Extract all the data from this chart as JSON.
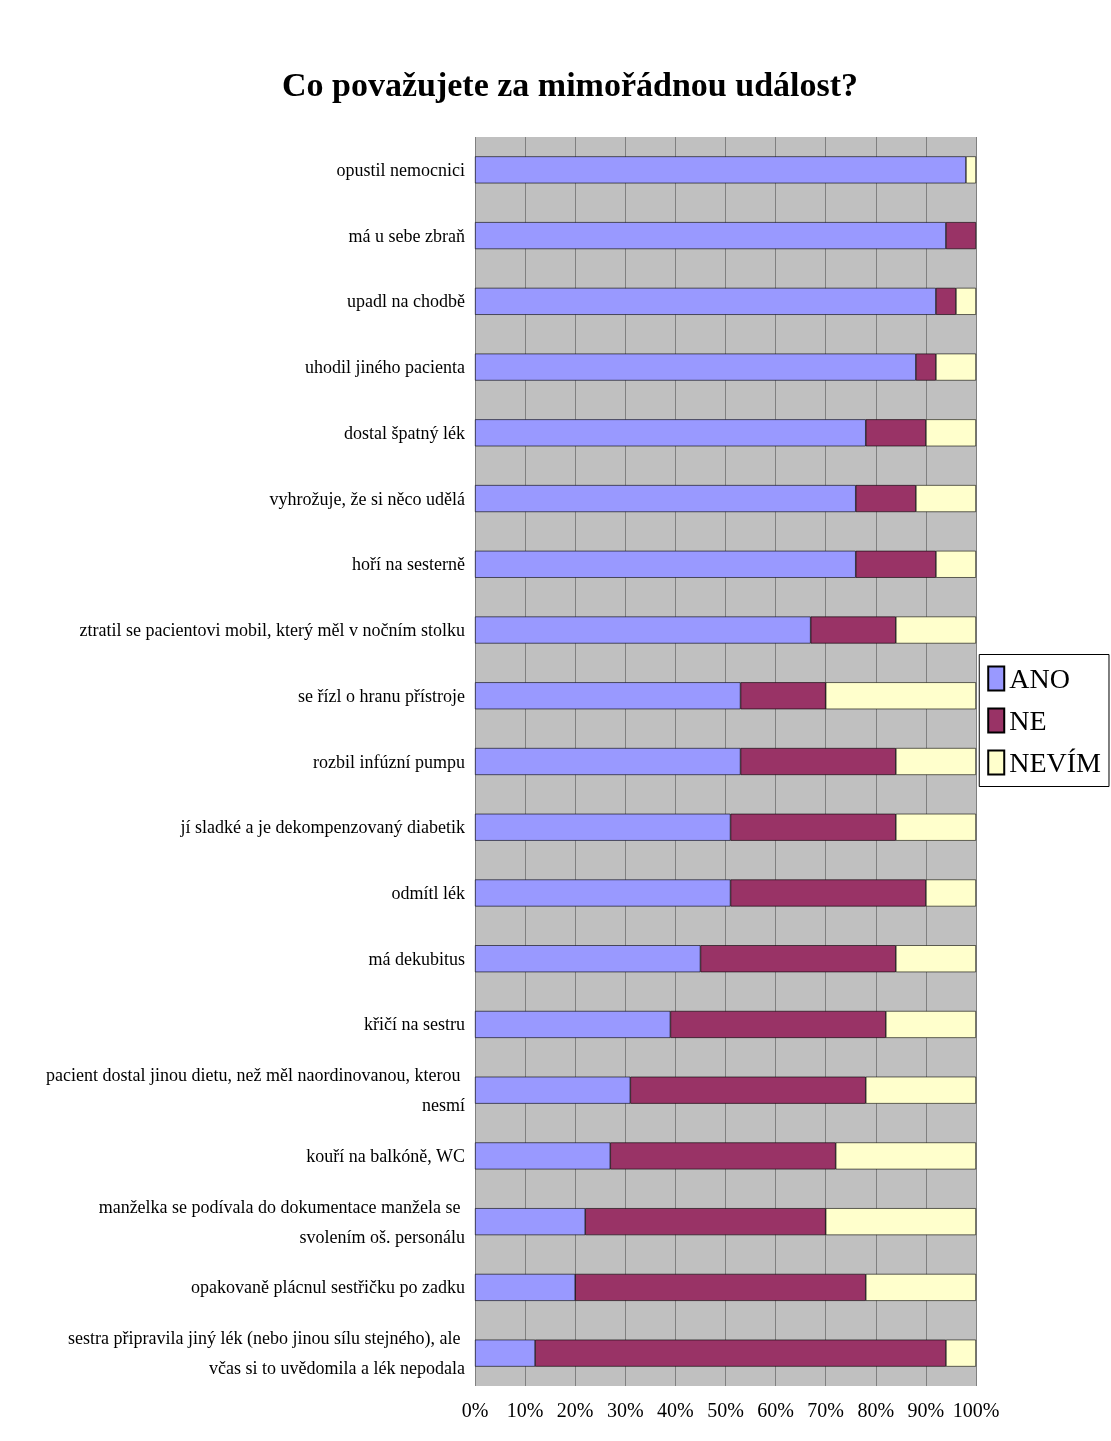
{
  "chart_data": {
    "type": "bar",
    "orientation": "horizontal",
    "stacked": true,
    "title": "Co považujete za mimořádnou událost?",
    "categories": [
      "opustil nemocnici",
      "má u sebe zbraň",
      "upadl na chodbě",
      "uhodil jiného pacienta",
      "dostal špatný lék",
      "vyhrožuje, že si něco udělá",
      "hoří na sesterně",
      "ztratil se pacientovi mobil, který měl v nočním stolku",
      "se řízl o hranu přístroje",
      "rozbil infúzní pumpu",
      "jí sladké a je dekompenzovaný diabetik",
      "odmítl lék",
      "má dekubitus",
      "křičí na sestru",
      "pacient dostal jinou dietu, než měl naordinovanou, kterou nesmí",
      "kouří na balkóně, WC",
      "manželka se podívala do dokumentace manžela se svolením oš. personálu",
      "opakovaně plácnul sestřičku po zadku",
      "sestra připravila jiný lék (nebo jinou sílu stejného), ale včas si to uvědomila a lék nepodala"
    ],
    "series": [
      {
        "name": "ANO",
        "color": "#9999ff",
        "values": [
          98,
          94,
          92,
          88,
          78,
          76,
          76,
          67,
          53,
          53,
          51,
          51,
          45,
          39,
          31,
          27,
          22,
          20,
          12
        ]
      },
      {
        "name": "NE",
        "color": "#993366",
        "values": [
          0,
          6,
          4,
          4,
          12,
          12,
          16,
          17,
          17,
          31,
          33,
          39,
          39,
          43,
          47,
          45,
          48,
          58,
          82
        ]
      },
      {
        "name": "NEVÍM",
        "color": "#ffffcc",
        "values": [
          2,
          0,
          4,
          8,
          10,
          12,
          8,
          16,
          30,
          16,
          16,
          10,
          16,
          18,
          22,
          28,
          30,
          22,
          6
        ]
      }
    ],
    "xlim": [
      0,
      100
    ],
    "xticks": [
      {
        "value": 0,
        "label": "0%"
      },
      {
        "value": 10,
        "label": "10%"
      },
      {
        "value": 20,
        "label": "20%"
      },
      {
        "value": 30,
        "label": "30%"
      },
      {
        "value": 40,
        "label": "40%"
      },
      {
        "value": 50,
        "label": "50%"
      },
      {
        "value": 60,
        "label": "60%"
      },
      {
        "value": 70,
        "label": "70%"
      },
      {
        "value": 80,
        "label": "80%"
      },
      {
        "value": 90,
        "label": "90%"
      },
      {
        "value": 100,
        "label": "100%"
      }
    ],
    "grid": "x",
    "legend": "right"
  }
}
